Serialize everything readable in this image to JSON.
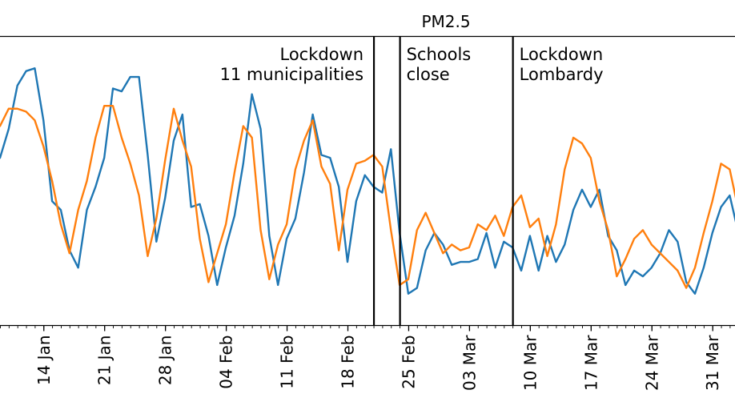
{
  "chart_data": {
    "type": "line",
    "title": "PM2.5",
    "xlabel": "",
    "ylabel": "",
    "x_start": "2020-01-09",
    "x_tick_labels": [
      {
        "date": "2020-01-14",
        "label": "14 Jan"
      },
      {
        "date": "2020-01-21",
        "label": "21 Jan"
      },
      {
        "date": "2020-01-28",
        "label": "28 Jan"
      },
      {
        "date": "2020-02-04",
        "label": "04 Feb"
      },
      {
        "date": "2020-02-11",
        "label": "11 Feb"
      },
      {
        "date": "2020-02-18",
        "label": "18 Feb"
      },
      {
        "date": "2020-02-25",
        "label": "25 Feb"
      },
      {
        "date": "2020-03-03",
        "label": "03 Mar"
      },
      {
        "date": "2020-03-10",
        "label": "10 Mar"
      },
      {
        "date": "2020-03-17",
        "label": "17 Mar"
      },
      {
        "date": "2020-03-24",
        "label": "24 Mar"
      },
      {
        "date": "2020-03-31",
        "label": "31 Mar"
      }
    ],
    "ylim": [
      0,
      100
    ],
    "grid": false,
    "series": [
      {
        "color": "#1f77b4",
        "values": [
          58,
          68,
          83,
          88,
          89,
          71,
          43,
          40,
          26,
          20,
          40,
          48,
          58,
          82,
          81,
          86,
          86,
          59,
          29,
          44,
          64,
          73,
          41,
          42,
          31,
          14,
          27,
          38,
          56,
          80,
          68,
          31,
          14,
          30,
          37,
          53,
          73,
          59,
          58,
          48,
          22,
          43,
          52,
          48,
          46,
          61,
          32,
          11,
          13,
          26,
          32,
          28,
          21,
          22,
          22,
          23,
          32,
          20,
          29,
          27,
          19,
          31,
          19,
          31,
          22,
          28,
          40,
          47,
          41,
          47,
          31,
          26,
          14,
          19,
          17,
          20,
          25,
          33,
          29,
          15,
          11,
          20,
          32,
          41,
          45,
          32
        ]
      },
      {
        "color": "#ff7f0e",
        "values": [
          69,
          75,
          75,
          74,
          71,
          62,
          50,
          35,
          25,
          40,
          50,
          65,
          76,
          76,
          65,
          56,
          45,
          24,
          37,
          57,
          75,
          64,
          55,
          30,
          15,
          25,
          35,
          53,
          69,
          65,
          33,
          16,
          28,
          35,
          54,
          64,
          71,
          55,
          49,
          26,
          47,
          56,
          57,
          59,
          55,
          33,
          14,
          16,
          33,
          39,
          32,
          25,
          28,
          26,
          27,
          35,
          33,
          38,
          31,
          41,
          45,
          34,
          37,
          24,
          35,
          54,
          65,
          63,
          58,
          43,
          33,
          17,
          23,
          30,
          33,
          28,
          25,
          22,
          19,
          13,
          20,
          32,
          43,
          56,
          54,
          40
        ]
      }
    ],
    "events": [
      {
        "date": "2020-02-21",
        "label_lines": [
          "Lockdown",
          "11 municipalities"
        ]
      },
      {
        "date": "2020-02-24",
        "label_lines": [
          "Schools",
          "close"
        ]
      },
      {
        "date": "2020-03-08",
        "label_lines": [
          "Lockdown",
          "Lombardy"
        ]
      }
    ]
  }
}
